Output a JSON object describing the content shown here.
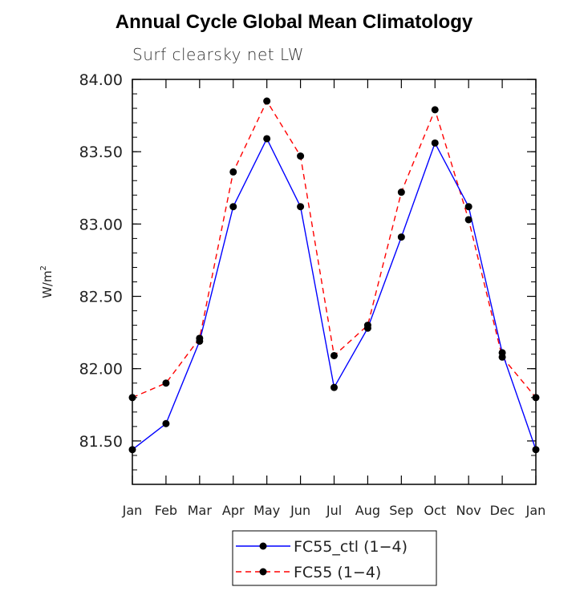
{
  "chart_data": {
    "type": "line",
    "title": "Annual Cycle Global Mean Climatology",
    "subtitle": "Surf clearsky net LW",
    "xlabel": "",
    "ylabel": "W/m",
    "ylabel_sup": "2",
    "categories": [
      "Jan",
      "Feb",
      "Mar",
      "Apr",
      "May",
      "Jun",
      "Jul",
      "Aug",
      "Sep",
      "Oct",
      "Nov",
      "Dec",
      "Jan"
    ],
    "ylim": [
      81.2,
      84.0
    ],
    "yticks": [
      81.5,
      82.0,
      82.5,
      83.0,
      83.5,
      84.0
    ],
    "ytick_labels": [
      "81.50",
      "82.00",
      "82.50",
      "83.00",
      "83.50",
      "84.00"
    ],
    "series": [
      {
        "name": "FC55_ctl (1-4)",
        "color": "#0000ff",
        "dash": "solid",
        "values": [
          81.44,
          81.62,
          82.19,
          83.12,
          83.59,
          83.12,
          81.87,
          82.28,
          82.91,
          83.56,
          83.12,
          82.11,
          81.44
        ]
      },
      {
        "name": "FC55 (1-4)",
        "color": "#ff0000",
        "dash": "dashed",
        "values": [
          81.8,
          81.9,
          82.21,
          83.36,
          83.85,
          83.47,
          82.09,
          82.3,
          83.22,
          83.79,
          83.03,
          82.08,
          81.8
        ]
      }
    ],
    "legend": {
      "position": "bottom-center",
      "entries": [
        "FC55_ctl (1−4)",
        "FC55 (1−4)"
      ]
    }
  }
}
